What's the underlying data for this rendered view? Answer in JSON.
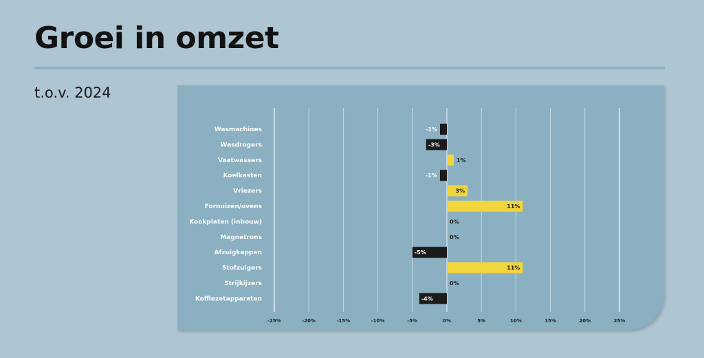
{
  "title": "Groei in omzet",
  "subtitle": "t.o.v. 2024",
  "chart_data": {
    "type": "bar",
    "orientation": "horizontal",
    "categories": [
      "Wasmachines",
      "Wasdrogers",
      "Vaatwassers",
      "Koelkasten",
      "Vriezers",
      "Fornuizen/ovens",
      "Kookplaten (inbouw)",
      "Magnetrons",
      "Afzuigkappen",
      "Stofzuigers",
      "Strijkijzers",
      "Koffiezetapparaten"
    ],
    "values": [
      -1,
      -3,
      1,
      -1,
      3,
      11,
      0,
      0,
      -5,
      11,
      0,
      -4
    ],
    "value_labels": [
      "-1%",
      "-3%",
      "1%",
      "-1%",
      "3%",
      "11%",
      "0%",
      "0%",
      "-5%",
      "11%",
      "0%",
      "-4%"
    ],
    "xlim": [
      -25,
      25
    ],
    "xticks": [
      -25,
      -20,
      -15,
      -10,
      -5,
      0,
      5,
      10,
      15,
      20,
      25
    ],
    "xtick_labels": [
      "-25%",
      "-20%",
      "-15%",
      "-10%",
      "-5%",
      "0%",
      "5%",
      "10%",
      "15%",
      "20%",
      "25%"
    ],
    "grid": true,
    "colors": {
      "positive": "#f2d43b",
      "negative": "#1c1a1b",
      "grid": "#c9dbe4",
      "card": "#8ab0c2"
    }
  }
}
